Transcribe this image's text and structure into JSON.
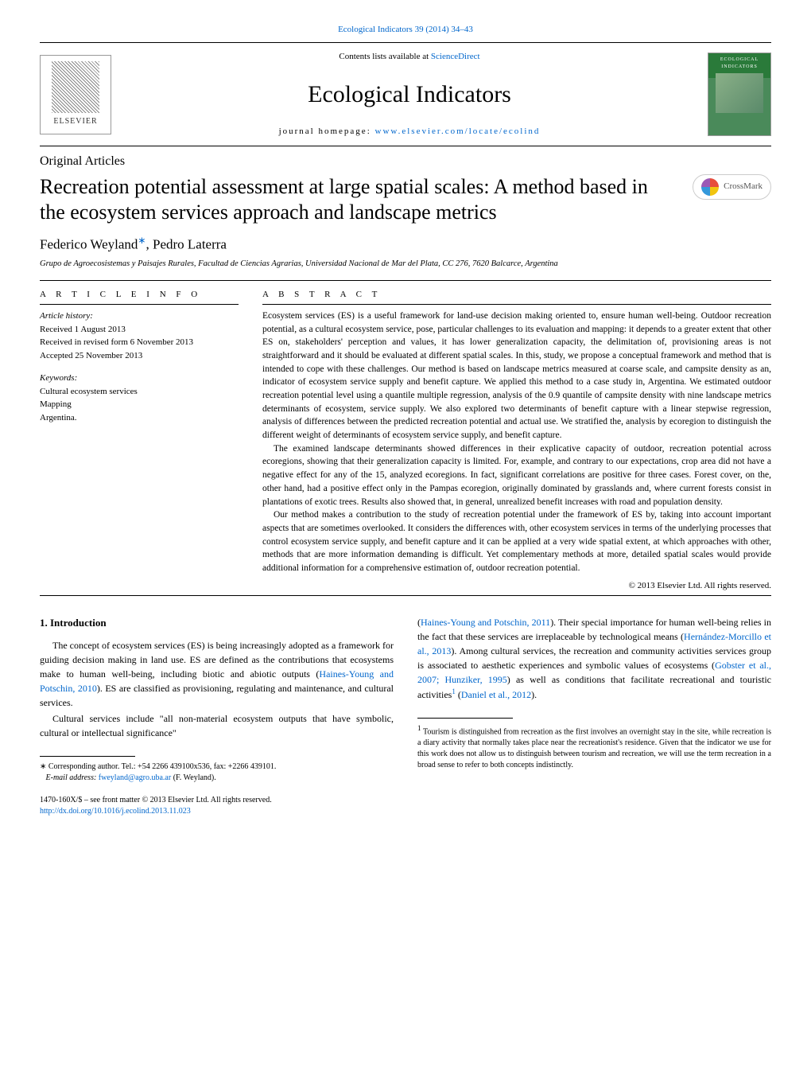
{
  "header": {
    "citation": "Ecological Indicators 39 (2014) 34–43",
    "contents_prefix": "Contents lists available at ",
    "contents_link": "ScienceDirect",
    "journal_title": "Ecological Indicators",
    "homepage_prefix": "journal homepage: ",
    "homepage_url": "www.elsevier.com/locate/ecolind",
    "publisher": "ELSEVIER",
    "cover_label": "ECOLOGICAL INDICATORS"
  },
  "article": {
    "type": "Original Articles",
    "title": "Recreation potential assessment at large spatial scales: A method based in the ecosystem services approach and landscape metrics",
    "crossmark": "CrossMark",
    "authors_line": "Federico Weyland",
    "author2": ", Pedro Laterra",
    "affiliation": "Grupo de Agroecosistemas y Paisajes Rurales, Facultad de Ciencias Agrarias, Universidad Nacional de Mar del Plata, CC 276, 7620 Balcarce, Argentina"
  },
  "info": {
    "section_label": "A R T I C L E   I N F O",
    "history_heading": "Article history:",
    "received": "Received 1 August 2013",
    "revised": "Received in revised form 6 November 2013",
    "accepted": "Accepted 25 November 2013",
    "keywords_heading": "Keywords:",
    "kw1": "Cultural ecosystem services",
    "kw2": "Mapping",
    "kw3": "Argentina."
  },
  "abstract": {
    "label": "A B S T R A C T",
    "p1": "Ecosystem services (ES) is a useful framework for land-use decision making oriented to, ensure human well-being. Outdoor recreation potential, as a cultural ecosystem service, pose, particular challenges to its evaluation and mapping: it depends to a greater extent that other ES on, stakeholders' perception and values, it has lower generalization capacity, the delimitation of, provisioning areas is not straightforward and it should be evaluated at different spatial scales. In this, study, we propose a conceptual framework and method that is intended to cope with these challenges. Our method is based on landscape metrics measured at coarse scale, and campsite density as an, indicator of ecosystem service supply and benefit capture. We applied this method to a case study in, Argentina. We estimated outdoor recreation potential level using a quantile multiple regression, analysis of the 0.9 quantile of campsite density with nine landscape metrics determinants of ecosystem, service supply. We also explored two determinants of benefit capture with a linear stepwise regression, analysis of differences between the predicted recreation potential and actual use. We stratified the, analysis by ecoregion to distinguish the different weight of determinants of ecosystem service supply, and benefit capture.",
    "p2": "The examined landscape determinants showed differences in their explicative capacity of outdoor, recreation potential across ecoregions, showing that their generalization capacity is limited. For, example, and contrary to our expectations, crop area did not have a negative effect for any of the 15, analyzed ecoregions. In fact, significant correlations are positive for three cases. Forest cover, on the, other hand, had a positive effect only in the Pampas ecoregion, originally dominated by grasslands and, where current forests consist in plantations of exotic trees. Results also showed that, in general, unrealized benefit increases with road and population density.",
    "p3": "Our method makes a contribution to the study of recreation potential under the framework of ES by, taking into account important aspects that are sometimes overlooked. It considers the differences with, other ecosystem services in terms of the underlying processes that control ecosystem service supply, and benefit capture and it can be applied at a very wide spatial extent, at which approaches with other, methods that are more information demanding is difficult. Yet complementary methods at more, detailed spatial scales would provide additional information for a comprehensive estimation of, outdoor recreation potential.",
    "copyright": "© 2013 Elsevier Ltd. All rights reserved."
  },
  "body": {
    "heading": "1.  Introduction",
    "left_p1a": "The concept of ecosystem services (ES) is being increasingly adopted as a framework for guiding decision making in land use. ES are defined as the contributions that ecosystems make to human well-being, including biotic and abiotic outputs (",
    "left_ref1": "Haines-Young and Potschin, 2010",
    "left_p1b": "). ES are classified as provisioning, regulating and maintenance, and cultural services.",
    "left_p2": "Cultural services include \"all non-material ecosystem outputs that have symbolic, cultural or intellectual significance\"",
    "right_p1a": "(",
    "right_ref1": "Haines-Young and Potschin, 2011",
    "right_p1b": "). Their special importance for human well-being relies in the fact that these services are irreplaceable by technological means (",
    "right_ref2": "Hernández-Morcillo et al., 2013",
    "right_p1c": "). Among cultural services, the recreation and community activities services group is associated to aesthetic experiences and symbolic values of ecosystems (",
    "right_ref3": "Gobster et al., 2007; Hunziker, 1995",
    "right_p1d": ") as well as conditions that facilitate recreational and touristic activities",
    "right_p1e": " (",
    "right_ref4": "Daniel et al., 2012",
    "right_p1f": ")."
  },
  "footnotes": {
    "corr_star": "∗",
    "corr_text": " Corresponding author. Tel.: +54 2266 439100x536, fax: +2266 439101.",
    "email_label": "E-mail address: ",
    "email": "fweyland@agro.uba.ar",
    "email_suffix": " (F. Weyland).",
    "fn1_num": "1",
    "fn1_text": " Tourism is distinguished from recreation as the first involves an overnight stay in the site, while recreation is a diary activity that normally takes place near the recreationist's residence. Given that the indicator we use for this work does not allow us to distinguish between tourism and recreation, we will use the term recreation in a broad sense to refer to both concepts indistinctly."
  },
  "footer": {
    "issn_line": "1470-160X/$ – see front matter © 2013 Elsevier Ltd. All rights reserved.",
    "doi": "http://dx.doi.org/10.1016/j.ecolind.2013.11.023"
  },
  "colors": {
    "link": "#0066cc",
    "cover_bg": "#2a7a3a",
    "text": "#000000"
  }
}
